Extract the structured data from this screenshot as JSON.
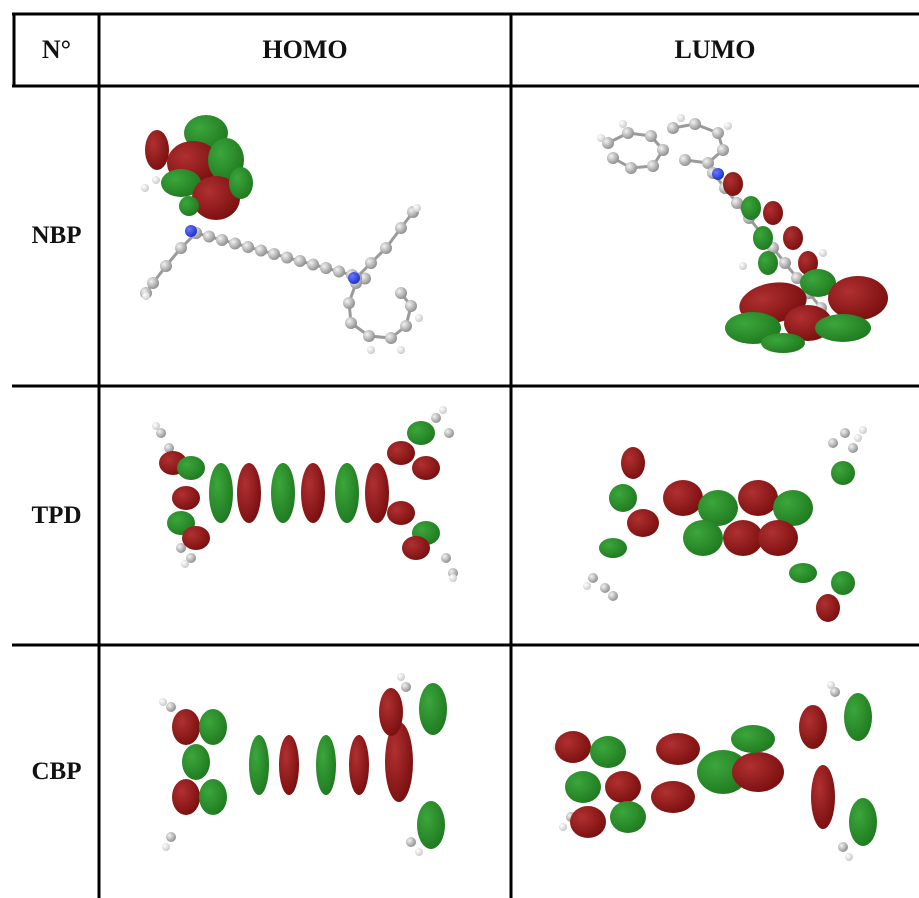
{
  "table": {
    "headers": {
      "no": "N°",
      "homo": "HOMO",
      "lumo": "LUMO"
    },
    "rows": [
      {
        "label": "NBP",
        "homo_image": "NBP HOMO orbital rendering",
        "lumo_image": "NBP LUMO orbital rendering"
      },
      {
        "label": "TPD",
        "homo_image": "TPD HOMO orbital rendering",
        "lumo_image": "TPD LUMO orbital rendering"
      },
      {
        "label": "CBP",
        "homo_image": "CBP HOMO orbital rendering",
        "lumo_image": "CBP LUMO orbital rendering"
      }
    ]
  },
  "colors": {
    "lobe_positive": "#7a0f0f",
    "lobe_negative": "#1f7a1f",
    "carbon": "#b9b9b9",
    "nitrogen": "#1a2fcc",
    "hydrogen": "#eeeeee"
  }
}
